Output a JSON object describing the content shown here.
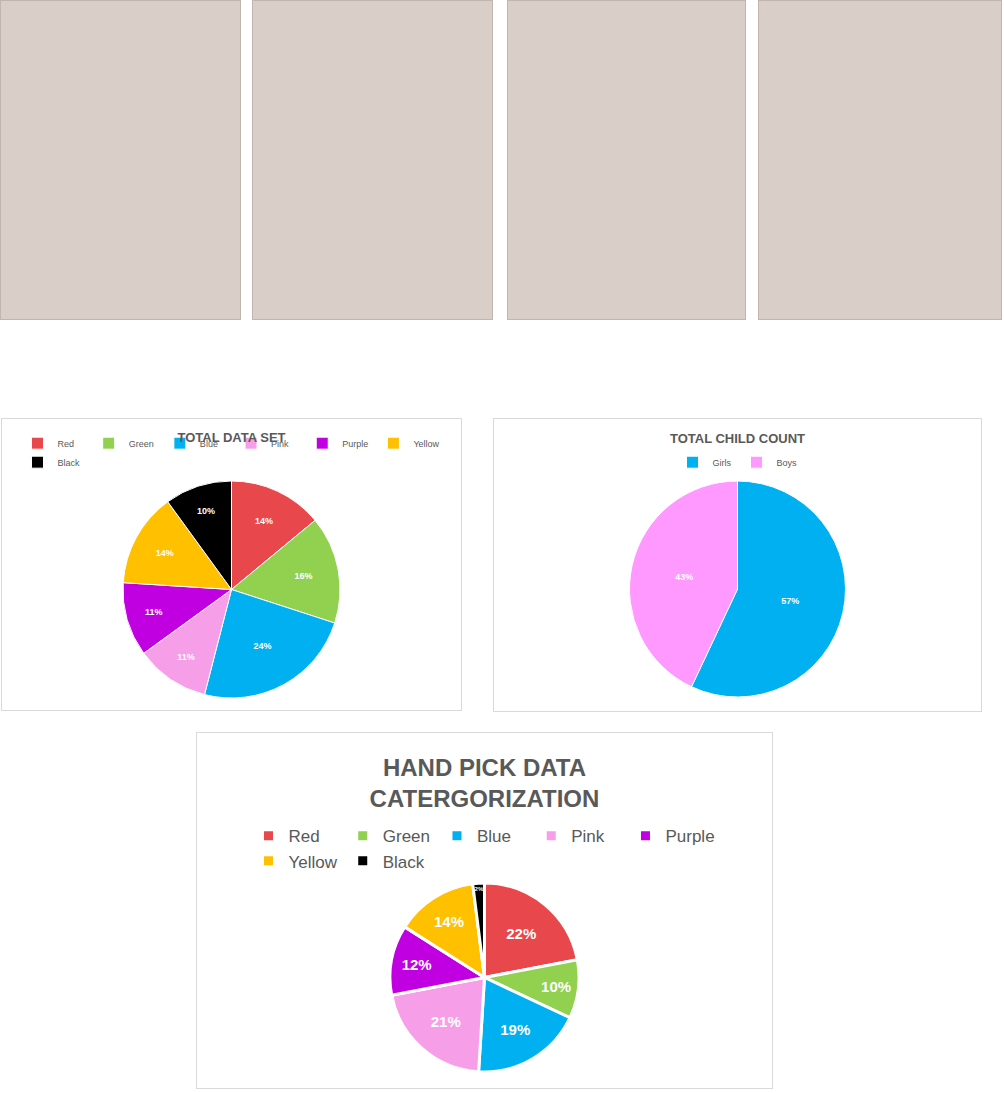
{
  "chart_data": [
    {
      "type": "pie",
      "title": "TOTAL DATA SET",
      "categories": [
        "Red",
        "Green",
        "Blue",
        "Pink",
        "Purple",
        "Yellow",
        "Black"
      ],
      "values": [
        14,
        16,
        24,
        11,
        11,
        14,
        10
      ],
      "value_labels": [
        "14%",
        "16%",
        "24%",
        "11%",
        "11%",
        "14%",
        "10%"
      ],
      "colors": [
        "#e8474b",
        "#92d050",
        "#00b0f0",
        "#f79ee8",
        "#c000e0",
        "#ffc000",
        "#000000"
      ],
      "legend": "top",
      "data_labels": true
    },
    {
      "type": "pie",
      "title": "TOTAL CHILD COUNT",
      "categories": [
        "Girls",
        "Boys"
      ],
      "values": [
        57,
        43
      ],
      "value_labels": [
        "57%",
        "43%"
      ],
      "colors": [
        "#00b0f0",
        "#ff99ff"
      ],
      "legend": "top",
      "data_labels": true
    },
    {
      "type": "pie",
      "title": "HAND PICK DATA CATERGORIZATION",
      "categories": [
        "Red",
        "Green",
        "Blue",
        "Pink",
        "Purple",
        "Yellow",
        "Black"
      ],
      "values": [
        22,
        10,
        19,
        21,
        12,
        14,
        2
      ],
      "value_labels": [
        "22%",
        "10%",
        "19%",
        "21%",
        "12%",
        "14%",
        "2%"
      ],
      "colors": [
        "#e8474b",
        "#92d050",
        "#00b0f0",
        "#f79ee8",
        "#c000e0",
        "#ffc000",
        "#000000"
      ],
      "legend": "top",
      "data_labels": true
    }
  ]
}
